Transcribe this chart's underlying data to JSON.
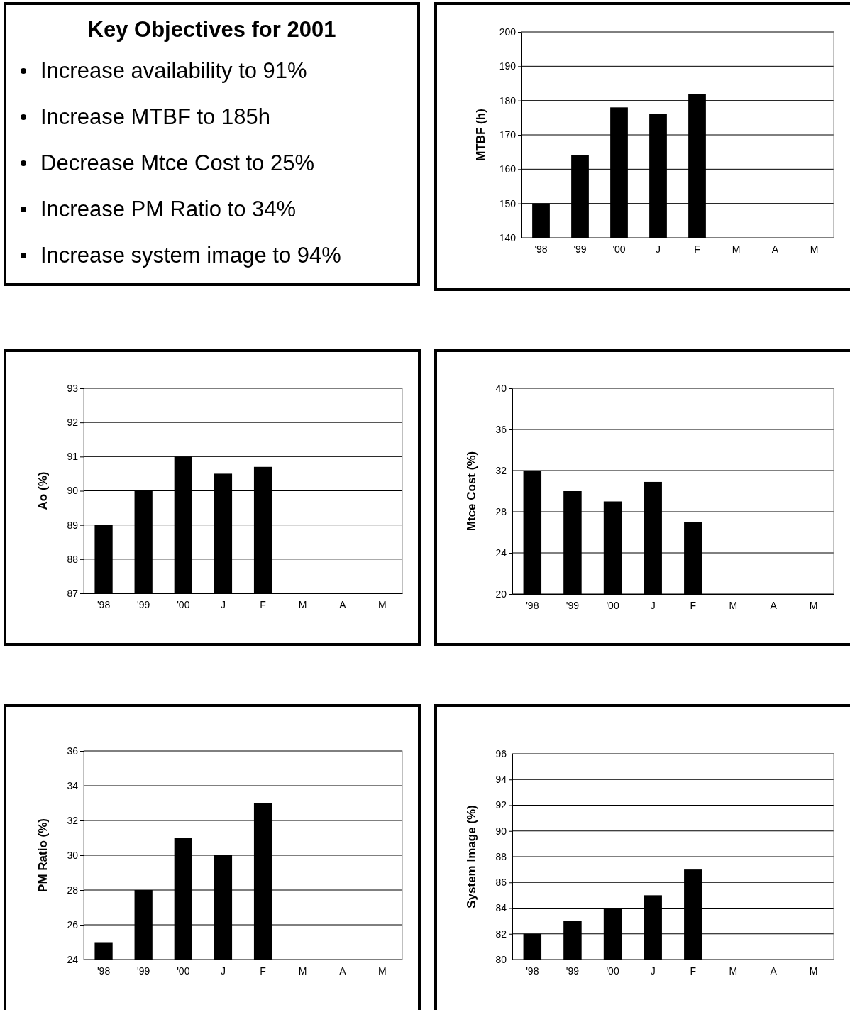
{
  "chart_data": [
    {
      "type": "other",
      "title": "Key Objectives for 2001",
      "annotations": [
        "Increase availability to 91%",
        "Increase MTBF to 185h",
        "Decrease Mtce Cost to 25%",
        "Increase PM Ratio to 34%",
        "Increase system image to 94%"
      ]
    },
    {
      "type": "bar",
      "ylabel": "MTBF (h)",
      "categories": [
        "'98",
        "'99",
        "'00",
        "J",
        "F",
        "M",
        "A",
        "M"
      ],
      "values": [
        150,
        164,
        178,
        176,
        182,
        null,
        null,
        null
      ],
      "color": "#000000",
      "ylim": [
        140,
        200
      ],
      "yticks": [
        140,
        150,
        160,
        170,
        180,
        190,
        200
      ],
      "grid": "y"
    },
    {
      "type": "bar",
      "ylabel": "Ao (%)",
      "categories": [
        "'98",
        "'99",
        "'00",
        "J",
        "F",
        "M",
        "A",
        "M"
      ],
      "values": [
        89,
        90,
        91,
        90.5,
        90.7,
        null,
        null,
        null
      ],
      "color": "#000000",
      "ylim": [
        87,
        93
      ],
      "yticks": [
        87,
        88,
        89,
        90,
        91,
        92,
        93
      ],
      "grid": "y"
    },
    {
      "type": "bar",
      "ylabel": "Mtce Cost (%)",
      "categories": [
        "'98",
        "'99",
        "'00",
        "J",
        "F",
        "M",
        "A",
        "M"
      ],
      "values": [
        32,
        30,
        29,
        30.9,
        27,
        null,
        null,
        null
      ],
      "color": "#000000",
      "ylim": [
        20,
        40
      ],
      "yticks": [
        20,
        24,
        28,
        32,
        36,
        40
      ],
      "grid": "y"
    },
    {
      "type": "bar",
      "ylabel": "PM Ratio (%)",
      "categories": [
        "'98",
        "'99",
        "'00",
        "J",
        "F",
        "M",
        "A",
        "M"
      ],
      "values": [
        25,
        28,
        31,
        30,
        33,
        null,
        null,
        null
      ],
      "color": "#000000",
      "ylim": [
        24,
        36
      ],
      "yticks": [
        24,
        26,
        28,
        30,
        32,
        34,
        36
      ],
      "grid": "y"
    },
    {
      "type": "bar",
      "ylabel": "System Image (%)",
      "categories": [
        "'98",
        "'99",
        "'00",
        "J",
        "F",
        "M",
        "A",
        "M"
      ],
      "values": [
        82,
        83,
        84,
        85,
        87,
        null,
        null,
        null
      ],
      "color": "#000000",
      "ylim": [
        80,
        96
      ],
      "yticks": [
        80,
        82,
        84,
        86,
        88,
        90,
        92,
        94,
        96
      ],
      "grid": "y"
    }
  ]
}
